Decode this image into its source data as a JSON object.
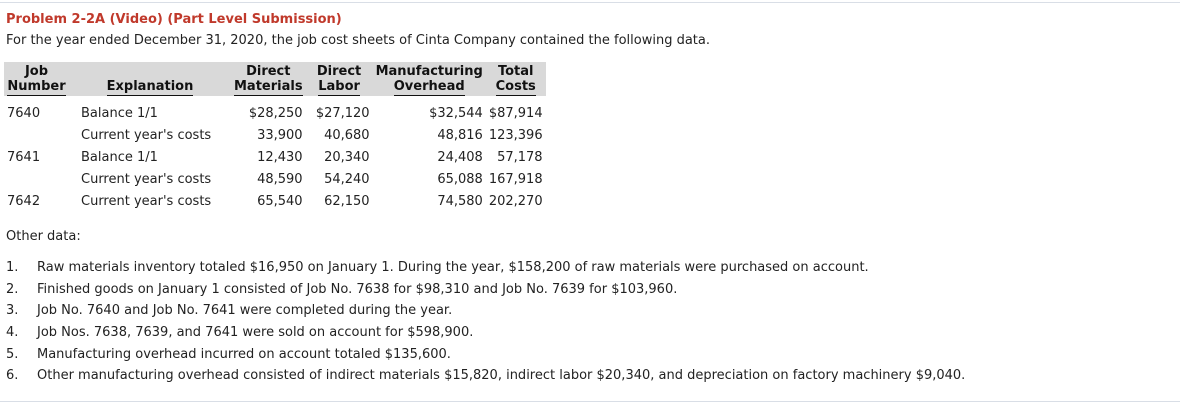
{
  "problem_title": "Problem 2-2A (Video) (Part Level Submission)",
  "intro": "For the year ended December 31, 2020, the job cost sheets of Cinta Company contained the following data.",
  "table": {
    "headers": {
      "job_number_1": "Job",
      "job_number_2": "Number",
      "explanation": "Explanation",
      "direct_materials_1": "Direct",
      "direct_materials_2": "Materials",
      "direct_labor_1": "Direct",
      "direct_labor_2": "Labor",
      "overhead_1": "Manufacturing",
      "overhead_2": "Overhead",
      "total_1": "Total",
      "total_2": "Costs"
    },
    "rows": [
      {
        "job": "7640",
        "explanation": "Balance 1/1",
        "dm": "$28,250",
        "dl": "$27,120",
        "mo": "$32,544",
        "total": "$87,914"
      },
      {
        "job": "",
        "explanation": "Current year's costs",
        "dm": "33,900",
        "dl": "40,680",
        "mo": "48,816",
        "total": "123,396"
      },
      {
        "job": "7641",
        "explanation": "Balance 1/1",
        "dm": "12,430",
        "dl": "20,340",
        "mo": "24,408",
        "total": "57,178"
      },
      {
        "job": "",
        "explanation": "Current year's costs",
        "dm": "48,590",
        "dl": "54,240",
        "mo": "65,088",
        "total": "167,918"
      },
      {
        "job": "7642",
        "explanation": "Current year's costs",
        "dm": "65,540",
        "dl": "62,150",
        "mo": "74,580",
        "total": "202,270"
      }
    ]
  },
  "other_data_label": "Other data:",
  "other_items": [
    {
      "num": "1.",
      "text": "Raw materials inventory totaled $16,950 on January 1. During the year, $158,200 of raw materials were purchased on account."
    },
    {
      "num": "2.",
      "text": "Finished goods on January 1 consisted of Job No. 7638 for $98,310 and Job No. 7639 for $103,960."
    },
    {
      "num": "3.",
      "text": "Job No. 7640 and Job No. 7641 were completed during the year."
    },
    {
      "num": "4.",
      "text": "Job Nos. 7638, 7639, and 7641 were sold on account for $598,900."
    },
    {
      "num": "5.",
      "text": "Manufacturing overhead incurred on account totaled $135,600."
    },
    {
      "num": "6.",
      "text": "Other manufacturing overhead consisted of indirect materials $15,820, indirect labor $20,340, and depreciation on factory machinery $9,040."
    }
  ]
}
